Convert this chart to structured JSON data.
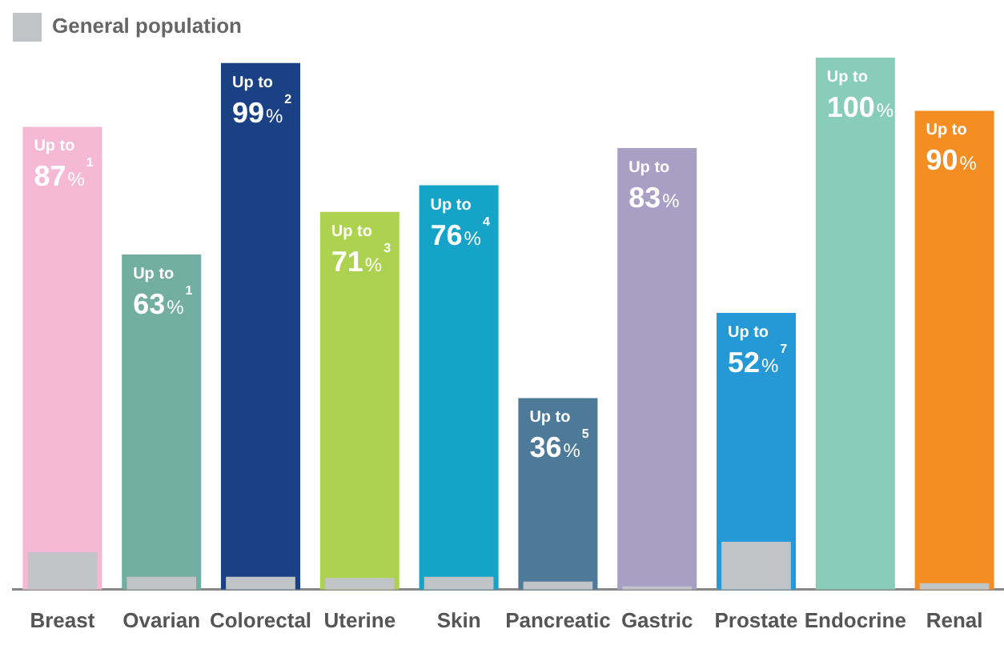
{
  "chart_data": {
    "type": "bar",
    "categories": [
      "Breast",
      "Ovarian",
      "Colorectal",
      "Uterine",
      "Skin",
      "Pancreatic",
      "Gastric",
      "Prostate",
      "Endocrine",
      "Renal"
    ],
    "series": [
      {
        "colors": [
          "#f6b9d5",
          "#72afa2",
          "#1b4185",
          "#add250",
          "#15a3c8",
          "#4e7a99",
          "#a7a0c4",
          "#2599d6",
          "#88cdb8",
          "#f48e22"
        ],
        "values": [
          87,
          63,
          99,
          71,
          76,
          36,
          83,
          52,
          100,
          90
        ],
        "value_labels": [
          "Up to\n87%$^{1}$",
          "Up to\n63%$^{1}$",
          "Up to\n99%$^{2}$",
          "Up to\n71%$^{3}$",
          "Up to\n76%$^{4}$",
          "Up to\n36%$^{5}$",
          "Up to\n83%",
          "Up to\n52%$^{7}$",
          "Up to\n100%",
          "Up to\n90%"
        ]
      },
      {
        "name": "General population",
        "color": "#c1c4c7",
        "values": [
          7,
          2.4,
          2.4,
          2.2,
          2.4,
          1.5,
          0.6,
          9,
          null,
          1.2
        ]
      }
    ],
    "ylim": [
      0,
      100
    ],
    "tick_labels": "x",
    "grid": false,
    "legend": "top left"
  }
}
